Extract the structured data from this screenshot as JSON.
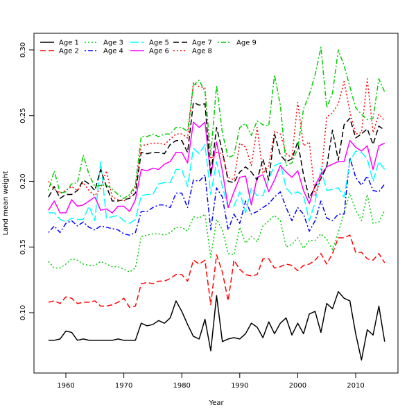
{
  "chart_data": {
    "type": "line",
    "title": "",
    "xlabel": "Year",
    "ylabel": "Land mean weight",
    "xlim": [
      1955,
      2017
    ],
    "ylim": [
      0.055,
      0.31
    ],
    "grid": false,
    "legend_position": "top-left",
    "x_ticks": [
      1960,
      1970,
      1980,
      1990,
      2000,
      2010
    ],
    "x_tick_labels": [
      "1960",
      "1970",
      "1980",
      "1990",
      "2000",
      "2010"
    ],
    "y_ticks": [
      0.1,
      0.15,
      0.2,
      0.25,
      0.3
    ],
    "y_tick_labels": [
      "0.10",
      "0.15",
      "0.20",
      "0.25",
      "0.30"
    ],
    "x_start": 1957,
    "x_end": 2015,
    "series": [
      {
        "name": "Age 1",
        "color": "#000000",
        "style": "solid",
        "values": [
          0.079,
          0.079,
          0.08,
          0.086,
          0.085,
          0.079,
          0.08,
          0.079,
          0.079,
          0.079,
          0.079,
          0.079,
          0.08,
          0.079,
          0.079,
          0.079,
          0.092,
          0.09,
          0.091,
          0.094,
          0.092,
          0.096,
          0.109,
          0.101,
          0.091,
          0.082,
          0.08,
          0.095,
          0.071,
          0.113,
          0.078,
          0.08,
          0.081,
          0.08,
          0.084,
          0.092,
          0.089,
          0.081,
          0.093,
          0.084,
          0.092,
          0.096,
          0.083,
          0.092,
          0.084,
          0.099,
          0.101,
          0.085,
          0.107,
          0.103,
          0.116,
          0.111,
          0.109,
          0.084,
          0.064,
          0.087,
          0.083,
          0.105,
          0.078
        ]
      },
      {
        "name": "Age 2",
        "color": "#ff0000",
        "style": "dashed",
        "values": [
          0.108,
          0.109,
          0.107,
          0.112,
          0.111,
          0.107,
          0.108,
          0.108,
          0.109,
          0.105,
          0.105,
          0.106,
          0.108,
          0.111,
          0.104,
          0.105,
          0.122,
          0.123,
          0.122,
          0.124,
          0.124,
          0.126,
          0.129,
          0.129,
          0.124,
          0.14,
          0.137,
          0.14,
          0.106,
          0.144,
          0.131,
          0.109,
          0.14,
          0.133,
          0.129,
          0.128,
          0.129,
          0.141,
          0.141,
          0.134,
          0.135,
          0.137,
          0.136,
          0.132,
          0.136,
          0.137,
          0.14,
          0.145,
          0.137,
          0.145,
          0.157,
          0.157,
          0.159,
          0.146,
          0.146,
          0.141,
          0.14,
          0.145,
          0.138
        ]
      },
      {
        "name": "Age 3",
        "color": "#00cd00",
        "style": "dotted",
        "values": [
          0.139,
          0.134,
          0.134,
          0.137,
          0.141,
          0.14,
          0.137,
          0.136,
          0.136,
          0.139,
          0.137,
          0.135,
          0.135,
          0.133,
          0.131,
          0.134,
          0.158,
          0.159,
          0.16,
          0.16,
          0.159,
          0.161,
          0.165,
          0.165,
          0.162,
          0.173,
          0.172,
          0.175,
          0.142,
          0.171,
          0.163,
          0.145,
          0.144,
          0.165,
          0.153,
          0.158,
          0.154,
          0.166,
          0.17,
          0.174,
          0.17,
          0.15,
          0.152,
          0.157,
          0.149,
          0.155,
          0.155,
          0.16,
          0.156,
          0.148,
          0.161,
          0.176,
          0.191,
          0.178,
          0.17,
          0.19,
          0.168,
          0.169,
          0.178
        ]
      },
      {
        "name": "Age 4",
        "color": "#0000ff",
        "style": "dashdot",
        "values": [
          0.161,
          0.166,
          0.161,
          0.168,
          0.17,
          0.166,
          0.169,
          0.165,
          0.163,
          0.166,
          0.165,
          0.164,
          0.163,
          0.16,
          0.159,
          0.161,
          0.177,
          0.177,
          0.18,
          0.182,
          0.182,
          0.18,
          0.191,
          0.191,
          0.18,
          0.201,
          0.2,
          0.205,
          0.163,
          0.195,
          0.188,
          0.163,
          0.175,
          0.168,
          0.185,
          0.175,
          0.177,
          0.18,
          0.183,
          0.188,
          0.192,
          0.18,
          0.17,
          0.18,
          0.175,
          0.162,
          0.17,
          0.185,
          0.172,
          0.17,
          0.175,
          0.175,
          0.218,
          0.203,
          0.197,
          0.204,
          0.193,
          0.192,
          0.198
        ]
      },
      {
        "name": "Age 5",
        "color": "#00ffff",
        "style": "longdash",
        "values": [
          0.176,
          0.176,
          0.171,
          0.169,
          0.172,
          0.171,
          0.171,
          0.181,
          0.17,
          0.215,
          0.172,
          0.173,
          0.174,
          0.17,
          0.168,
          0.171,
          0.189,
          0.19,
          0.19,
          0.198,
          0.199,
          0.199,
          0.209,
          0.209,
          0.196,
          0.225,
          0.221,
          0.228,
          0.19,
          0.215,
          0.196,
          0.18,
          0.181,
          0.192,
          0.176,
          0.195,
          0.189,
          0.189,
          0.202,
          0.212,
          0.214,
          0.195,
          0.19,
          0.192,
          0.189,
          0.17,
          0.184,
          0.21,
          0.193,
          0.194,
          0.195,
          0.188,
          0.215,
          0.223,
          0.222,
          0.217,
          0.2,
          0.215,
          0.209
        ]
      },
      {
        "name": "Age 6",
        "color": "#ff00ff",
        "style": "solid",
        "values": [
          0.178,
          0.185,
          0.176,
          0.176,
          0.186,
          0.181,
          0.182,
          0.185,
          0.188,
          0.178,
          0.179,
          0.176,
          0.181,
          0.181,
          0.177,
          0.186,
          0.209,
          0.208,
          0.21,
          0.209,
          0.213,
          0.215,
          0.222,
          0.222,
          0.214,
          0.245,
          0.241,
          0.245,
          0.204,
          0.23,
          0.208,
          0.18,
          0.192,
          0.203,
          0.204,
          0.182,
          0.203,
          0.205,
          0.192,
          0.201,
          0.212,
          0.207,
          0.203,
          0.208,
          0.193,
          0.183,
          0.197,
          0.205,
          0.211,
          0.213,
          0.215,
          0.215,
          0.231,
          0.226,
          0.223,
          0.227,
          0.209,
          0.227,
          0.229
        ]
      },
      {
        "name": "Age 7",
        "color": "#000000",
        "style": "dashed",
        "values": [
          0.188,
          0.196,
          0.187,
          0.19,
          0.19,
          0.193,
          0.201,
          0.198,
          0.193,
          0.209,
          0.196,
          0.185,
          0.185,
          0.186,
          0.187,
          0.191,
          0.222,
          0.221,
          0.222,
          0.222,
          0.221,
          0.228,
          0.231,
          0.231,
          0.222,
          0.26,
          0.258,
          0.259,
          0.205,
          0.241,
          0.223,
          0.2,
          0.199,
          0.207,
          0.211,
          0.207,
          0.201,
          0.217,
          0.201,
          0.236,
          0.22,
          0.215,
          0.217,
          0.23,
          0.205,
          0.187,
          0.196,
          0.202,
          0.211,
          0.239,
          0.216,
          0.243,
          0.248,
          0.233,
          0.236,
          0.24,
          0.228,
          0.242,
          0.239
        ]
      },
      {
        "name": "Age 8",
        "color": "#ff0000",
        "style": "dotted",
        "values": [
          0.2,
          0.194,
          0.191,
          0.193,
          0.196,
          0.193,
          0.199,
          0.193,
          0.189,
          0.195,
          0.208,
          0.188,
          0.186,
          0.185,
          0.188,
          0.196,
          0.227,
          0.228,
          0.229,
          0.229,
          0.228,
          0.232,
          0.236,
          0.236,
          0.233,
          0.275,
          0.272,
          0.271,
          0.217,
          0.222,
          0.221,
          0.203,
          0.201,
          0.229,
          0.226,
          0.212,
          0.241,
          0.206,
          0.212,
          0.238,
          0.236,
          0.221,
          0.218,
          0.26,
          0.227,
          0.23,
          0.189,
          0.202,
          0.249,
          0.252,
          0.259,
          0.276,
          0.253,
          0.236,
          0.237,
          0.278,
          0.237,
          0.251,
          0.246
        ]
      },
      {
        "name": "Age 9",
        "color": "#00cd00",
        "style": "dashdot",
        "values": [
          0.193,
          0.208,
          0.191,
          0.192,
          0.198,
          0.199,
          0.22,
          0.205,
          0.196,
          0.197,
          0.197,
          0.194,
          0.19,
          0.187,
          0.19,
          0.197,
          0.234,
          0.234,
          0.236,
          0.234,
          0.236,
          0.236,
          0.241,
          0.241,
          0.238,
          0.273,
          0.277,
          0.268,
          0.22,
          0.273,
          0.237,
          0.218,
          0.22,
          0.241,
          0.244,
          0.235,
          0.246,
          0.243,
          0.242,
          0.281,
          0.258,
          0.212,
          0.214,
          0.225,
          0.255,
          0.266,
          0.281,
          0.302,
          0.256,
          0.267,
          0.3,
          0.288,
          0.272,
          0.256,
          0.251,
          0.247,
          0.248,
          0.278,
          0.268
        ]
      }
    ]
  }
}
